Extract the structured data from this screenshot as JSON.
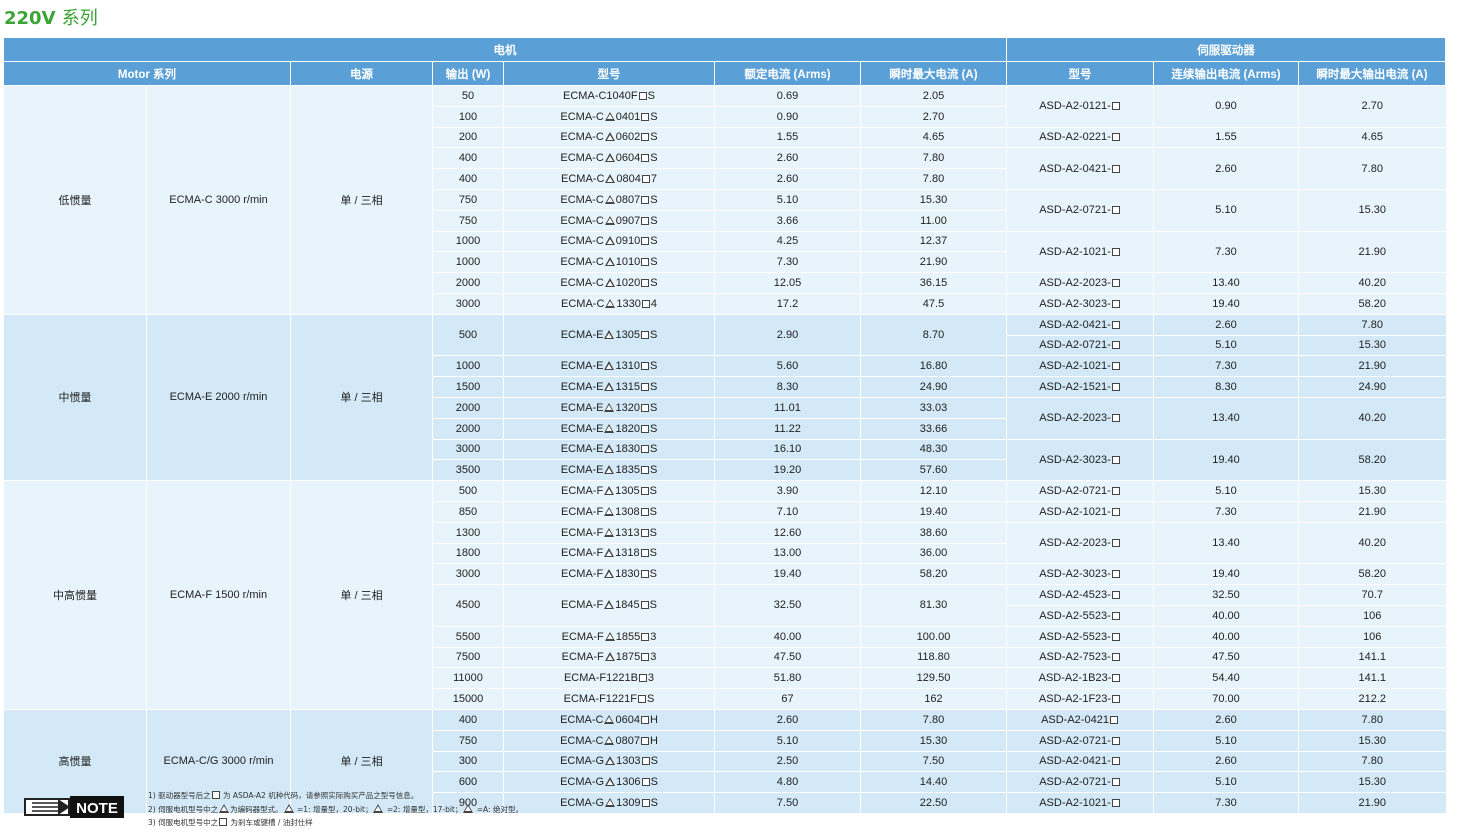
{
  "title": {
    "main": "220V",
    "suffix": "系列"
  },
  "headers": {
    "motor_group": "电机",
    "drive_group": "伺服驱动器",
    "cols": [
      "Motor 系列",
      "电源",
      "输出 (W)",
      "型号",
      "额定电流 (Arms)",
      "瞬时最大电流 (A)",
      "型号",
      "连续输出电流 (Arms)",
      "瞬时最大输出电流 (A)"
    ]
  },
  "groups": [
    {
      "inertia": "低惯量",
      "series": "ECMA-C  3000 r/min",
      "power": "单 / 三相",
      "rows": 11
    },
    {
      "inertia": "中惯量",
      "series": "ECMA-E  2000 r/min",
      "power": "单 / 三相",
      "rows": 8
    },
    {
      "inertia": "中高惯量",
      "series": "ECMA-F  1500 r/min",
      "power": "单 / 三相",
      "rows": 11
    },
    {
      "inertia": "高惯量",
      "series": "ECMA-C/G  3000 r/min",
      "power": "单 / 三相",
      "rows": 5
    }
  ],
  "motors": [
    {
      "w": "50",
      "m": [
        "ECMA-C1040F",
        "S"
      ],
      "rated": "0.69",
      "peak": "2.05",
      "span": 1
    },
    {
      "w": "100",
      "m": [
        "ECMA-C",
        "0401",
        "S"
      ],
      "rated": "0.90",
      "peak": "2.70",
      "span": 1
    },
    {
      "w": "200",
      "m": [
        "ECMA-C",
        "0602",
        "S"
      ],
      "rated": "1.55",
      "peak": "4.65",
      "span": 1
    },
    {
      "w": "400",
      "m": [
        "ECMA-C",
        "0604",
        "S"
      ],
      "rated": "2.60",
      "peak": "7.80",
      "span": 1
    },
    {
      "w": "400",
      "m": [
        "ECMA-C",
        "0804",
        "7"
      ],
      "rated": "2.60",
      "peak": "7.80",
      "span": 1
    },
    {
      "w": "750",
      "m": [
        "ECMA-C",
        "0807",
        "S"
      ],
      "rated": "5.10",
      "peak": "15.30",
      "span": 1
    },
    {
      "w": "750",
      "m": [
        "ECMA-C",
        "0907",
        "S"
      ],
      "rated": "3.66",
      "peak": "11.00",
      "span": 1
    },
    {
      "w": "1000",
      "m": [
        "ECMA-C",
        "0910",
        "S"
      ],
      "rated": "4.25",
      "peak": "12.37",
      "span": 1
    },
    {
      "w": "1000",
      "m": [
        "ECMA-C",
        "1010",
        "S"
      ],
      "rated": "7.30",
      "peak": "21.90",
      "span": 1
    },
    {
      "w": "2000",
      "m": [
        "ECMA-C",
        "1020",
        "S"
      ],
      "rated": "12.05",
      "peak": "36.15",
      "span": 1
    },
    {
      "w": "3000",
      "m": [
        "ECMA-C",
        "1330",
        "4"
      ],
      "rated": "17.2",
      "peak": "47.5",
      "span": 1
    },
    {
      "w": "500",
      "m": [
        "ECMA-E",
        "1305",
        "S"
      ],
      "rated": "2.90",
      "peak": "8.70",
      "span": 2
    },
    {
      "w": "1000",
      "m": [
        "ECMA-E",
        "1310",
        "S"
      ],
      "rated": "5.60",
      "peak": "16.80",
      "span": 1
    },
    {
      "w": "1500",
      "m": [
        "ECMA-E",
        "1315",
        "S"
      ],
      "rated": "8.30",
      "peak": "24.90",
      "span": 1
    },
    {
      "w": "2000",
      "m": [
        "ECMA-E",
        "1320",
        "S"
      ],
      "rated": "11.01",
      "peak": "33.03",
      "span": 1
    },
    {
      "w": "2000",
      "m": [
        "ECMA-E",
        "1820",
        "S"
      ],
      "rated": "11.22",
      "peak": "33.66",
      "span": 1
    },
    {
      "w": "3000",
      "m": [
        "ECMA-E",
        "1830",
        "S"
      ],
      "rated": "16.10",
      "peak": "48.30",
      "span": 1
    },
    {
      "w": "3500",
      "m": [
        "ECMA-E",
        "1835",
        "S"
      ],
      "rated": "19.20",
      "peak": "57.60",
      "span": 1
    },
    {
      "w": "500",
      "m": [
        "ECMA-F",
        "1305",
        "S"
      ],
      "rated": "3.90",
      "peak": "12.10",
      "span": 1
    },
    {
      "w": "850",
      "m": [
        "ECMA-F",
        "1308",
        "S"
      ],
      "rated": "7.10",
      "peak": "19.40",
      "span": 1
    },
    {
      "w": "1300",
      "m": [
        "ECMA-F",
        "1313",
        "S"
      ],
      "rated": "12.60",
      "peak": "38.60",
      "span": 1
    },
    {
      "w": "1800",
      "m": [
        "ECMA-F",
        "1318",
        "S"
      ],
      "rated": "13.00",
      "peak": "36.00",
      "span": 1
    },
    {
      "w": "3000",
      "m": [
        "ECMA-F",
        "1830",
        "S"
      ],
      "rated": "19.40",
      "peak": "58.20",
      "span": 1
    },
    {
      "w": "4500",
      "m": [
        "ECMA-F",
        "1845",
        "S"
      ],
      "rated": "32.50",
      "peak": "81.30",
      "span": 2
    },
    {
      "w": "5500",
      "m": [
        "ECMA-F",
        "1855",
        "3"
      ],
      "rated": "40.00",
      "peak": "100.00",
      "span": 1
    },
    {
      "w": "7500",
      "m": [
        "ECMA-F",
        "1875",
        "3"
      ],
      "rated": "47.50",
      "peak": "118.80",
      "span": 1
    },
    {
      "w": "11000",
      "m": [
        "ECMA-F1221B",
        "3"
      ],
      "rated": "51.80",
      "peak": "129.50",
      "span": 1
    },
    {
      "w": "15000",
      "m": [
        "ECMA-F1221F",
        "S"
      ],
      "rated": "67",
      "peak": "162",
      "span": 1
    },
    {
      "w": "400",
      "m": [
        "ECMA-C",
        "0604",
        "H"
      ],
      "rated": "2.60",
      "peak": "7.80",
      "span": 1
    },
    {
      "w": "750",
      "m": [
        "ECMA-C",
        "0807",
        "H"
      ],
      "rated": "5.10",
      "peak": "15.30",
      "span": 1
    },
    {
      "w": "300",
      "m": [
        "ECMA-G",
        "1303",
        "S"
      ],
      "rated": "2.50",
      "peak": "7.50",
      "span": 1
    },
    {
      "w": "600",
      "m": [
        "ECMA-G",
        "1306",
        "S"
      ],
      "rated": "4.80",
      "peak": "14.40",
      "span": 1
    },
    {
      "w": "900",
      "m": [
        "ECMA-G",
        "1309",
        "S"
      ],
      "rated": "7.50",
      "peak": "22.50",
      "span": 1
    }
  ],
  "drives": [
    {
      "model": "ASD-A2-0121-",
      "cont": "0.90",
      "peak": "2.70",
      "span": 2
    },
    {
      "model": "ASD-A2-0221-",
      "cont": "1.55",
      "peak": "4.65",
      "span": 1
    },
    {
      "model": "ASD-A2-0421-",
      "cont": "2.60",
      "peak": "7.80",
      "span": 2
    },
    {
      "model": "ASD-A2-0721-",
      "cont": "5.10",
      "peak": "15.30",
      "span": 2
    },
    {
      "model": "ASD-A2-1021-",
      "cont": "7.30",
      "peak": "21.90",
      "span": 2
    },
    {
      "model": "ASD-A2-2023-",
      "cont": "13.40",
      "peak": "40.20",
      "span": 1
    },
    {
      "model": "ASD-A2-3023-",
      "cont": "19.40",
      "peak": "58.20",
      "span": 1
    },
    {
      "model": "ASD-A2-0421-",
      "cont": "2.60",
      "peak": "7.80",
      "span": 1
    },
    {
      "model": "ASD-A2-0721-",
      "cont": "5.10",
      "peak": "15.30",
      "span": 1
    },
    {
      "model": "ASD-A2-1021-",
      "cont": "7.30",
      "peak": "21.90",
      "span": 1
    },
    {
      "model": "ASD-A2-1521-",
      "cont": "8.30",
      "peak": "24.90",
      "span": 1
    },
    {
      "model": "ASD-A2-2023-",
      "cont": "13.40",
      "peak": "40.20",
      "span": 2
    },
    {
      "model": "ASD-A2-3023-",
      "cont": "19.40",
      "peak": "58.20",
      "span": 2
    },
    {
      "model": "ASD-A2-0721-",
      "cont": "5.10",
      "peak": "15.30",
      "span": 1
    },
    {
      "model": "ASD-A2-1021-",
      "cont": "7.30",
      "peak": "21.90",
      "span": 1
    },
    {
      "model": "ASD-A2-2023-",
      "cont": "13.40",
      "peak": "40.20",
      "span": 2
    },
    {
      "model": "ASD-A2-3023-",
      "cont": "19.40",
      "peak": "58.20",
      "span": 1
    },
    {
      "model": "ASD-A2-4523-",
      "cont": "32.50",
      "peak": "70.7",
      "span": 1
    },
    {
      "model": "ASD-A2-5523-",
      "cont": "40.00",
      "peak": "106",
      "span": 1
    },
    {
      "model": "ASD-A2-5523-",
      "cont": "40.00",
      "peak": "106",
      "span": 1
    },
    {
      "model": "ASD-A2-7523-",
      "cont": "47.50",
      "peak": "141.1",
      "span": 1
    },
    {
      "model": "ASD-A2-1B23-",
      "cont": "54.40",
      "peak": "141.1",
      "span": 1
    },
    {
      "model": "ASD-A2-1F23-",
      "cont": "70.00",
      "peak": "212.2",
      "span": 1
    },
    {
      "model": "ASD-A2-0421",
      "cont": "2.60",
      "peak": "7.80",
      "span": 1
    },
    {
      "model": "ASD-A2-0721-",
      "cont": "5.10",
      "peak": "15.30",
      "span": 1
    },
    {
      "model": "ASD-A2-0421-",
      "cont": "2.60",
      "peak": "7.80",
      "span": 1
    },
    {
      "model": "ASD-A2-0721-",
      "cont": "5.10",
      "peak": "15.30",
      "span": 1
    },
    {
      "model": "ASD-A2-1021-",
      "cont": "7.30",
      "peak": "21.90",
      "span": 1
    }
  ],
  "note": {
    "label": "NOTE",
    "lines": [
      [
        "1) 驱动器型号后之",
        "box",
        " 为 ASDA-A2 机种代码，请参照实际购买产品之型号信息。"
      ],
      [
        "2) 伺服电机型号中之",
        "tri",
        "为编码器型式。",
        "tri",
        " =1: 增量型，20-bit；",
        "tri",
        " =2: 增量型，17-bit；",
        "tri",
        " =A: 绝对型。"
      ],
      [
        "3) 伺服电机型号中之",
        "box",
        " 为刹车或键槽 / 油封仕样"
      ]
    ]
  },
  "colors": {
    "header": "#5aa0d6",
    "title": "#3aa435",
    "rowA": "#e8f4fb",
    "rowB": "#d3e9f7"
  }
}
